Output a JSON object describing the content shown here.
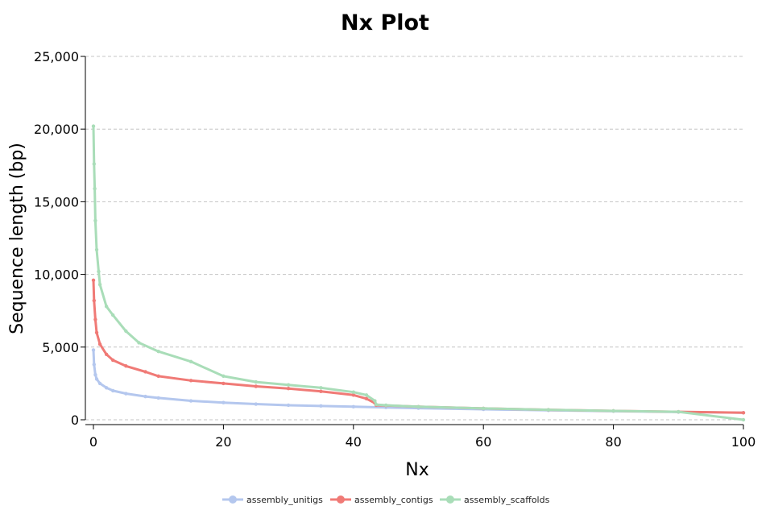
{
  "chart_data": {
    "type": "line",
    "title": "Nx Plot",
    "xlabel": "Nx",
    "ylabel": "Sequence length (bp)",
    "xlim": [
      0,
      100
    ],
    "ylim": [
      0,
      25000
    ],
    "x_ticks": [
      0,
      20,
      40,
      60,
      80,
      100
    ],
    "x_tick_labels": [
      "0",
      "20",
      "40",
      "60",
      "80",
      "100"
    ],
    "y_ticks": [
      0,
      5000,
      10000,
      15000,
      20000,
      25000
    ],
    "y_tick_labels": [
      "0",
      "5,000",
      "10,000",
      "15,000",
      "20,000",
      "25,000"
    ],
    "grid": "horizontal dashed",
    "legend_position": "bottom-center",
    "series": [
      {
        "name": "assembly_unitigs",
        "color": "#b4c7ee",
        "x": [
          0,
          0.1,
          0.3,
          0.5,
          1,
          2,
          3,
          5,
          8,
          10,
          15,
          20,
          25,
          30,
          35,
          40,
          45,
          50,
          60,
          70,
          80,
          90,
          100
        ],
        "y": [
          4800,
          3800,
          3100,
          2800,
          2500,
          2200,
          2000,
          1800,
          1600,
          1500,
          1300,
          1180,
          1080,
          1000,
          950,
          900,
          850,
          800,
          720,
          650,
          590,
          530,
          480
        ]
      },
      {
        "name": "assembly_contigs",
        "color": "#f07a76",
        "x": [
          0,
          0.1,
          0.3,
          0.5,
          1,
          2,
          3,
          5,
          8,
          10,
          15,
          20,
          25,
          30,
          35,
          40,
          42,
          43.3,
          43.5,
          45,
          50,
          60,
          70,
          80,
          90,
          100
        ],
        "y": [
          9600,
          8200,
          6900,
          6000,
          5200,
          4500,
          4100,
          3700,
          3300,
          3000,
          2700,
          2500,
          2300,
          2150,
          1950,
          1700,
          1450,
          1150,
          1000,
          980,
          900,
          780,
          690,
          610,
          550,
          480
        ]
      },
      {
        "name": "assembly_scaffolds",
        "color": "#a9ddb8",
        "x": [
          0,
          0.1,
          0.2,
          0.3,
          0.5,
          0.8,
          1,
          2,
          3,
          5,
          7,
          10,
          15,
          20,
          25,
          30,
          35,
          40,
          42,
          43.3,
          43.5,
          45,
          50,
          60,
          70,
          80,
          90,
          100
        ],
        "y": [
          20200,
          17600,
          15900,
          13700,
          11700,
          10200,
          9300,
          7800,
          7200,
          6100,
          5300,
          4700,
          4000,
          3000,
          2600,
          2400,
          2200,
          1900,
          1700,
          1300,
          1050,
          1000,
          900,
          780,
          690,
          610,
          550,
          0
        ]
      }
    ]
  }
}
